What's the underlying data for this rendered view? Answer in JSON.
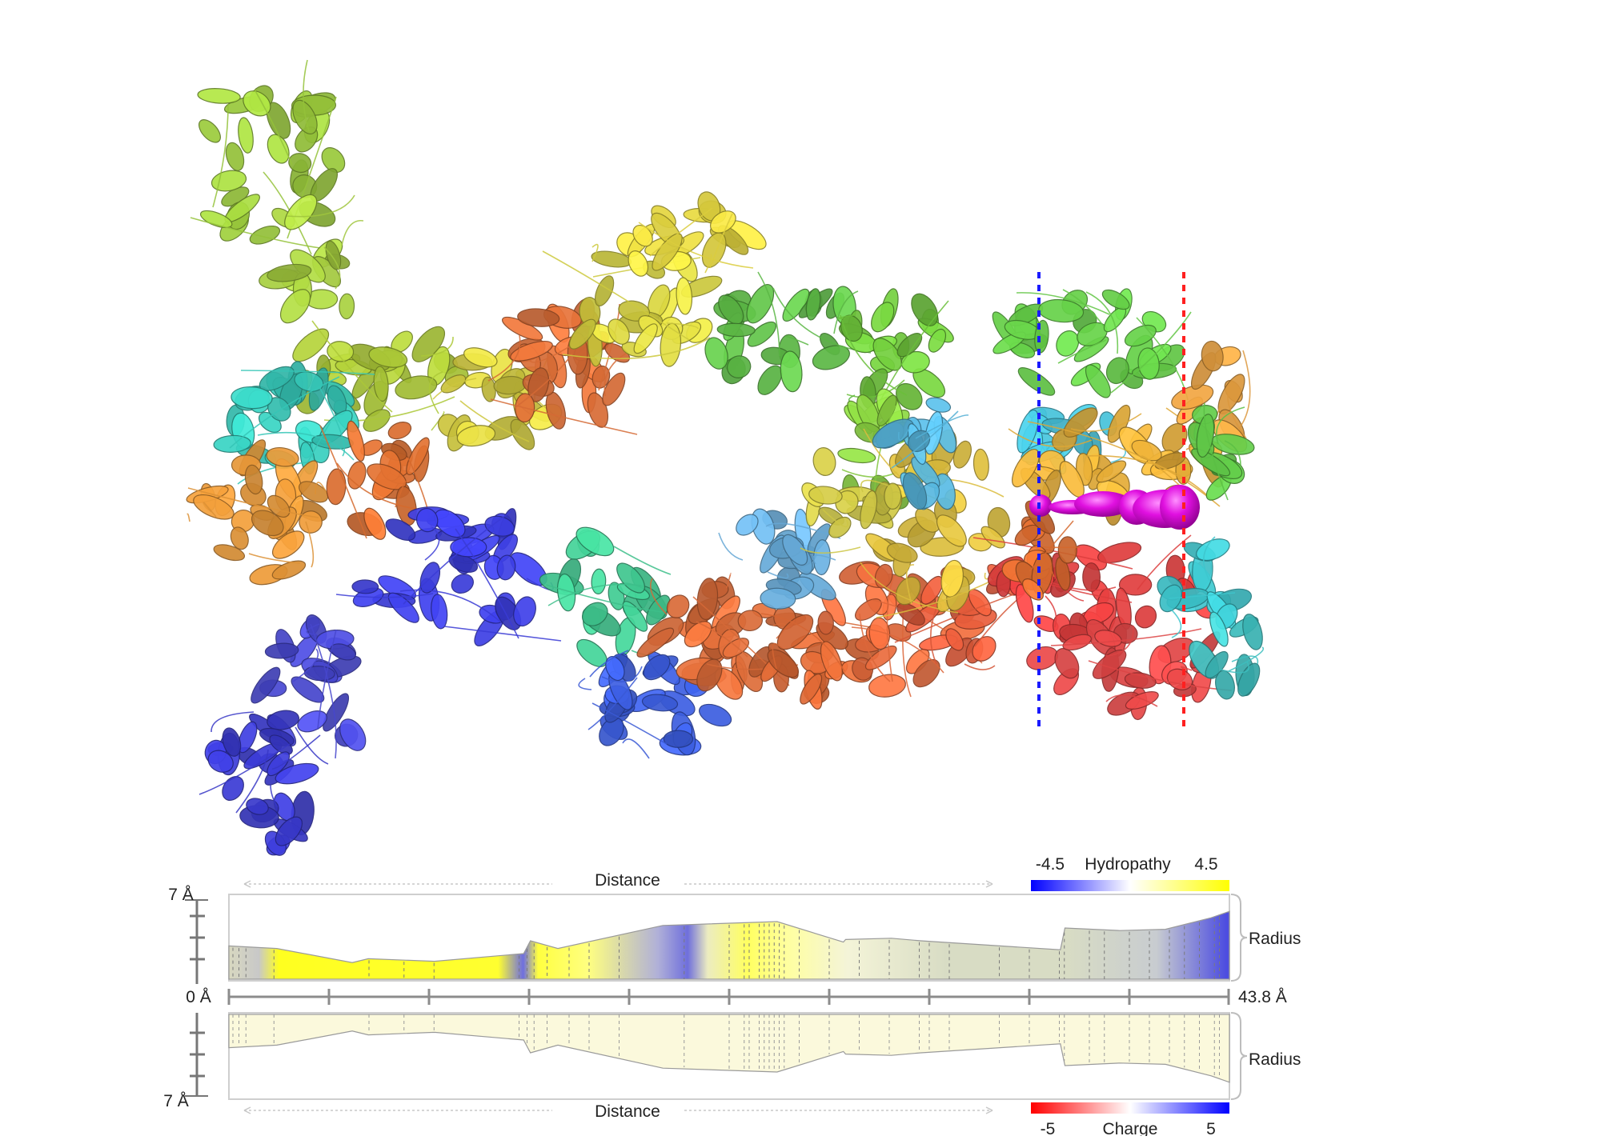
{
  "upper_panel": {
    "distance_label": "Distance",
    "radius_label": "Radius",
    "scale_min": "-4.5",
    "scale_name": "Hydropathy",
    "scale_max": "4.5",
    "radius_max": "7 Å"
  },
  "axis": {
    "start": "0 Å",
    "end": "43.8 Å"
  },
  "lower_panel": {
    "distance_label": "Distance",
    "radius_label": "Radius",
    "scale_min": "-5",
    "scale_name": "Charge",
    "scale_max": "5",
    "radius_max": "7 Å"
  },
  "colors": {
    "tunnel": "#e010e0",
    "entry_marker": "#1a1aff",
    "exit_marker": "#ff2020",
    "hydrophobic": "#ffff00",
    "hydrophilic": "#1010ee",
    "charge_negative": "#ff0000",
    "charge_positive": "#1010ee"
  },
  "profile": {
    "length_angstrom": 43.8,
    "max_radius_angstrom": 7,
    "distance_angstrom": [
      0,
      2.1,
      5.4,
      6.1,
      9.0,
      12.9,
      13.2,
      14.4,
      19.0,
      24.0,
      26.9,
      27.0,
      29.0,
      30.3,
      36.4,
      36.6,
      39.0,
      41.0,
      43.0,
      43.8
    ],
    "radius_angstrom": [
      2.6,
      2.4,
      1.3,
      1.6,
      1.4,
      2.0,
      3.0,
      2.4,
      4.2,
      4.5,
      2.9,
      3.1,
      3.2,
      3.0,
      2.3,
      4.0,
      3.8,
      3.9,
      4.8,
      5.3
    ]
  }
}
